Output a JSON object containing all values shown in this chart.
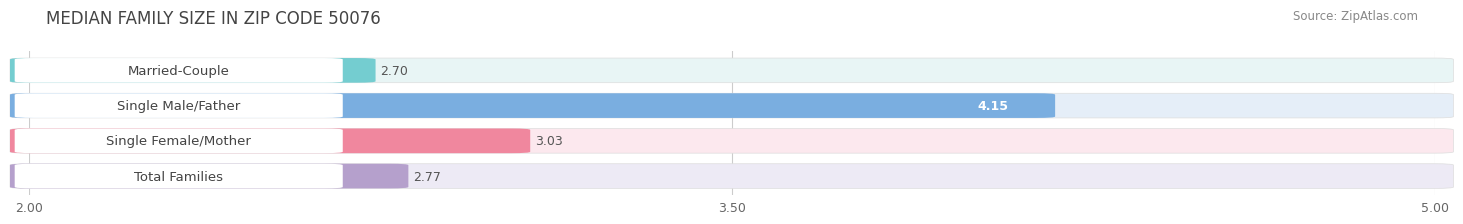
{
  "title": "MEDIAN FAMILY SIZE IN ZIP CODE 50076",
  "source": "Source: ZipAtlas.com",
  "categories": [
    "Married-Couple",
    "Single Male/Father",
    "Single Female/Mother",
    "Total Families"
  ],
  "values": [
    2.7,
    4.15,
    3.03,
    2.77
  ],
  "bar_colors": [
    "#74cdd0",
    "#7aaee0",
    "#f0879e",
    "#b5a0cc"
  ],
  "bg_colors": [
    "#e8f5f5",
    "#e5eef8",
    "#fce8ee",
    "#edeaf5"
  ],
  "xmin": 2.0,
  "xmax": 5.0,
  "xticks": [
    2.0,
    3.5,
    5.0
  ],
  "bar_height": 0.62,
  "background_color": "#ffffff",
  "plot_bg": "#f7f7f7",
  "title_fontsize": 12,
  "label_fontsize": 9.5,
  "value_fontsize": 9,
  "axis_fontsize": 9,
  "source_fontsize": 8.5
}
